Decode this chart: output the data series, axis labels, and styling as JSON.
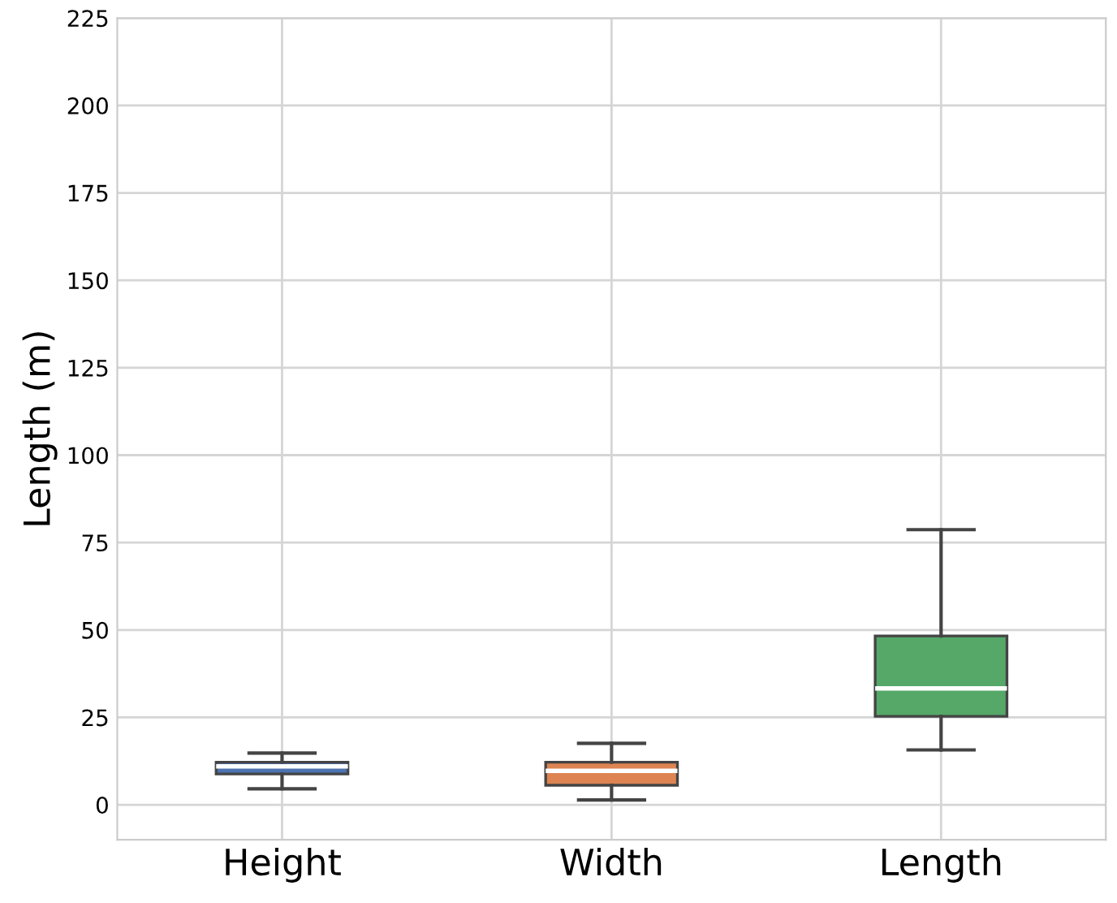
{
  "chart_data": {
    "type": "box",
    "ylabel": "Length (m)",
    "categories": [
      "Height",
      "Width",
      "Length"
    ],
    "boxes": [
      {
        "low": 4.6,
        "q1": 8.8,
        "median": 11,
        "q3": 12.2,
        "high": 14.8
      },
      {
        "low": 1.4,
        "q1": 5.6,
        "median": 9.7,
        "q3": 12.2,
        "high": 17.6
      },
      {
        "low": 15.7,
        "q1": 25.3,
        "median": 33.3,
        "q3": 48.3,
        "high": 78.7
      }
    ],
    "colors": [
      "#4c72b0",
      "#dd8452",
      "#55a868"
    ],
    "ylim": [
      -10,
      225
    ],
    "yticks": [
      0,
      25,
      50,
      75,
      100,
      125,
      150,
      175,
      200,
      225
    ],
    "grid": true
  }
}
